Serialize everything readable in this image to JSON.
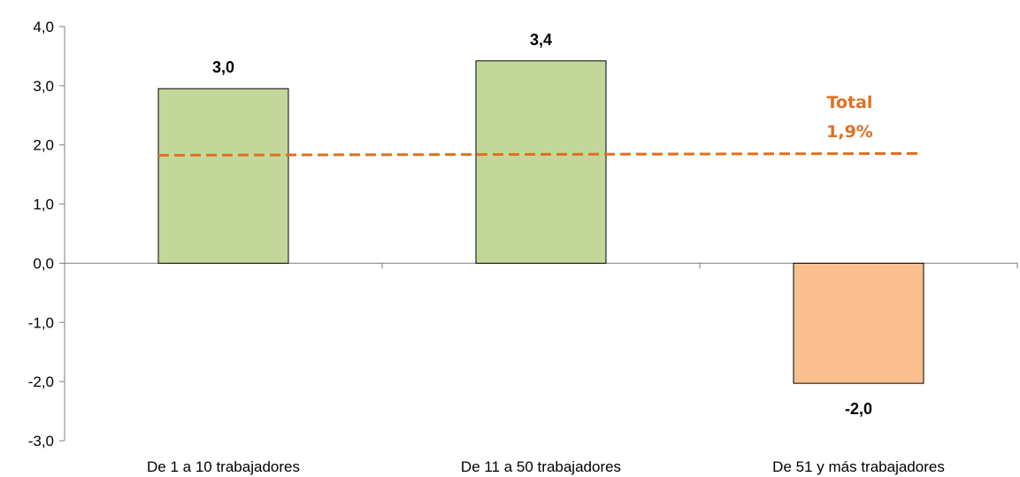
{
  "chart_data": {
    "type": "bar",
    "categories": [
      "De 1 a 10 trabajadores",
      "De 11 a 50 trabajadores",
      "De 51 y más trabajadores"
    ],
    "values": [
      2.95,
      3.42,
      -2.03
    ],
    "value_labels": [
      "3,0",
      "3,4",
      "-2,0"
    ],
    "ylim": [
      -3.0,
      4.0
    ],
    "yticks": [
      4.0,
      3.0,
      2.0,
      1.0,
      0.0,
      -1.0,
      -2.0,
      -3.0
    ],
    "ytick_labels": [
      "4,0",
      "3,0",
      "2,0",
      "1,0",
      "0,0",
      "-1,0",
      "-2,0",
      "-3,0"
    ],
    "reference_line": {
      "value": 1.9,
      "label_line1": "Total",
      "label_line2": "1,9%",
      "color": "#E07020",
      "style": "dashed"
    },
    "colors": {
      "positive": "#C4D79B",
      "negative": "#FABF8F",
      "bar_border": "#000000",
      "axis": "#808080"
    },
    "grid": false,
    "legend": "none",
    "title": "",
    "xlabel": "",
    "ylabel": ""
  }
}
